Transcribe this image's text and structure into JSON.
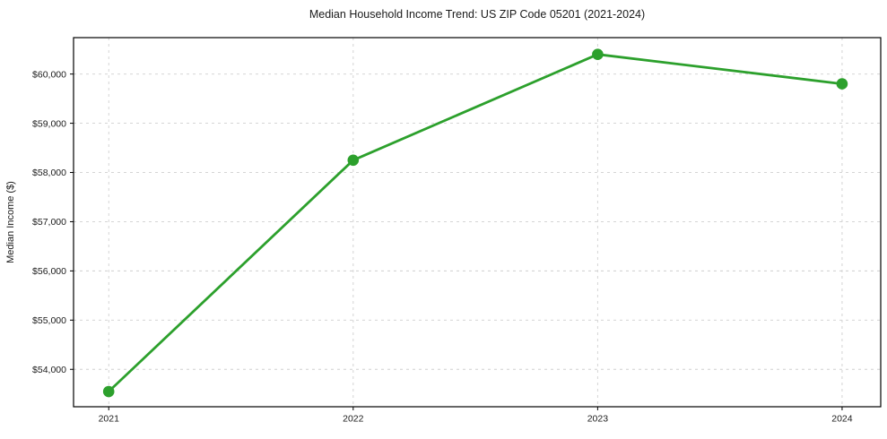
{
  "chart_data": {
    "type": "line",
    "title": "Median Household Income Trend: US ZIP Code 05201 (2021-2024)",
    "xlabel": "",
    "ylabel": "Median Income ($)",
    "x": [
      2021,
      2022,
      2023,
      2024
    ],
    "xtick_labels": [
      "2021",
      "2022",
      "2023",
      "2024"
    ],
    "series": [
      {
        "name": "Median Household Income",
        "values": [
          53550,
          58250,
          60400,
          59800
        ]
      }
    ],
    "ytick_values": [
      54000,
      55000,
      56000,
      57000,
      58000,
      59000,
      60000
    ],
    "ytick_labels": [
      "$54,000",
      "$55,000",
      "$56,000",
      "$57,000",
      "$58,000",
      "$59,000",
      "$60,000"
    ],
    "xlim": [
      2020.856,
      2024.158
    ],
    "ylim": [
      53240,
      60740
    ],
    "grid": "dashed",
    "legend": "none",
    "colors": {
      "line": "#2ca02c",
      "marker": "#2ca02c",
      "grid": "#cfcfcf",
      "axis": "#000000",
      "text": "#1a1a1a",
      "background": "#ffffff"
    }
  }
}
